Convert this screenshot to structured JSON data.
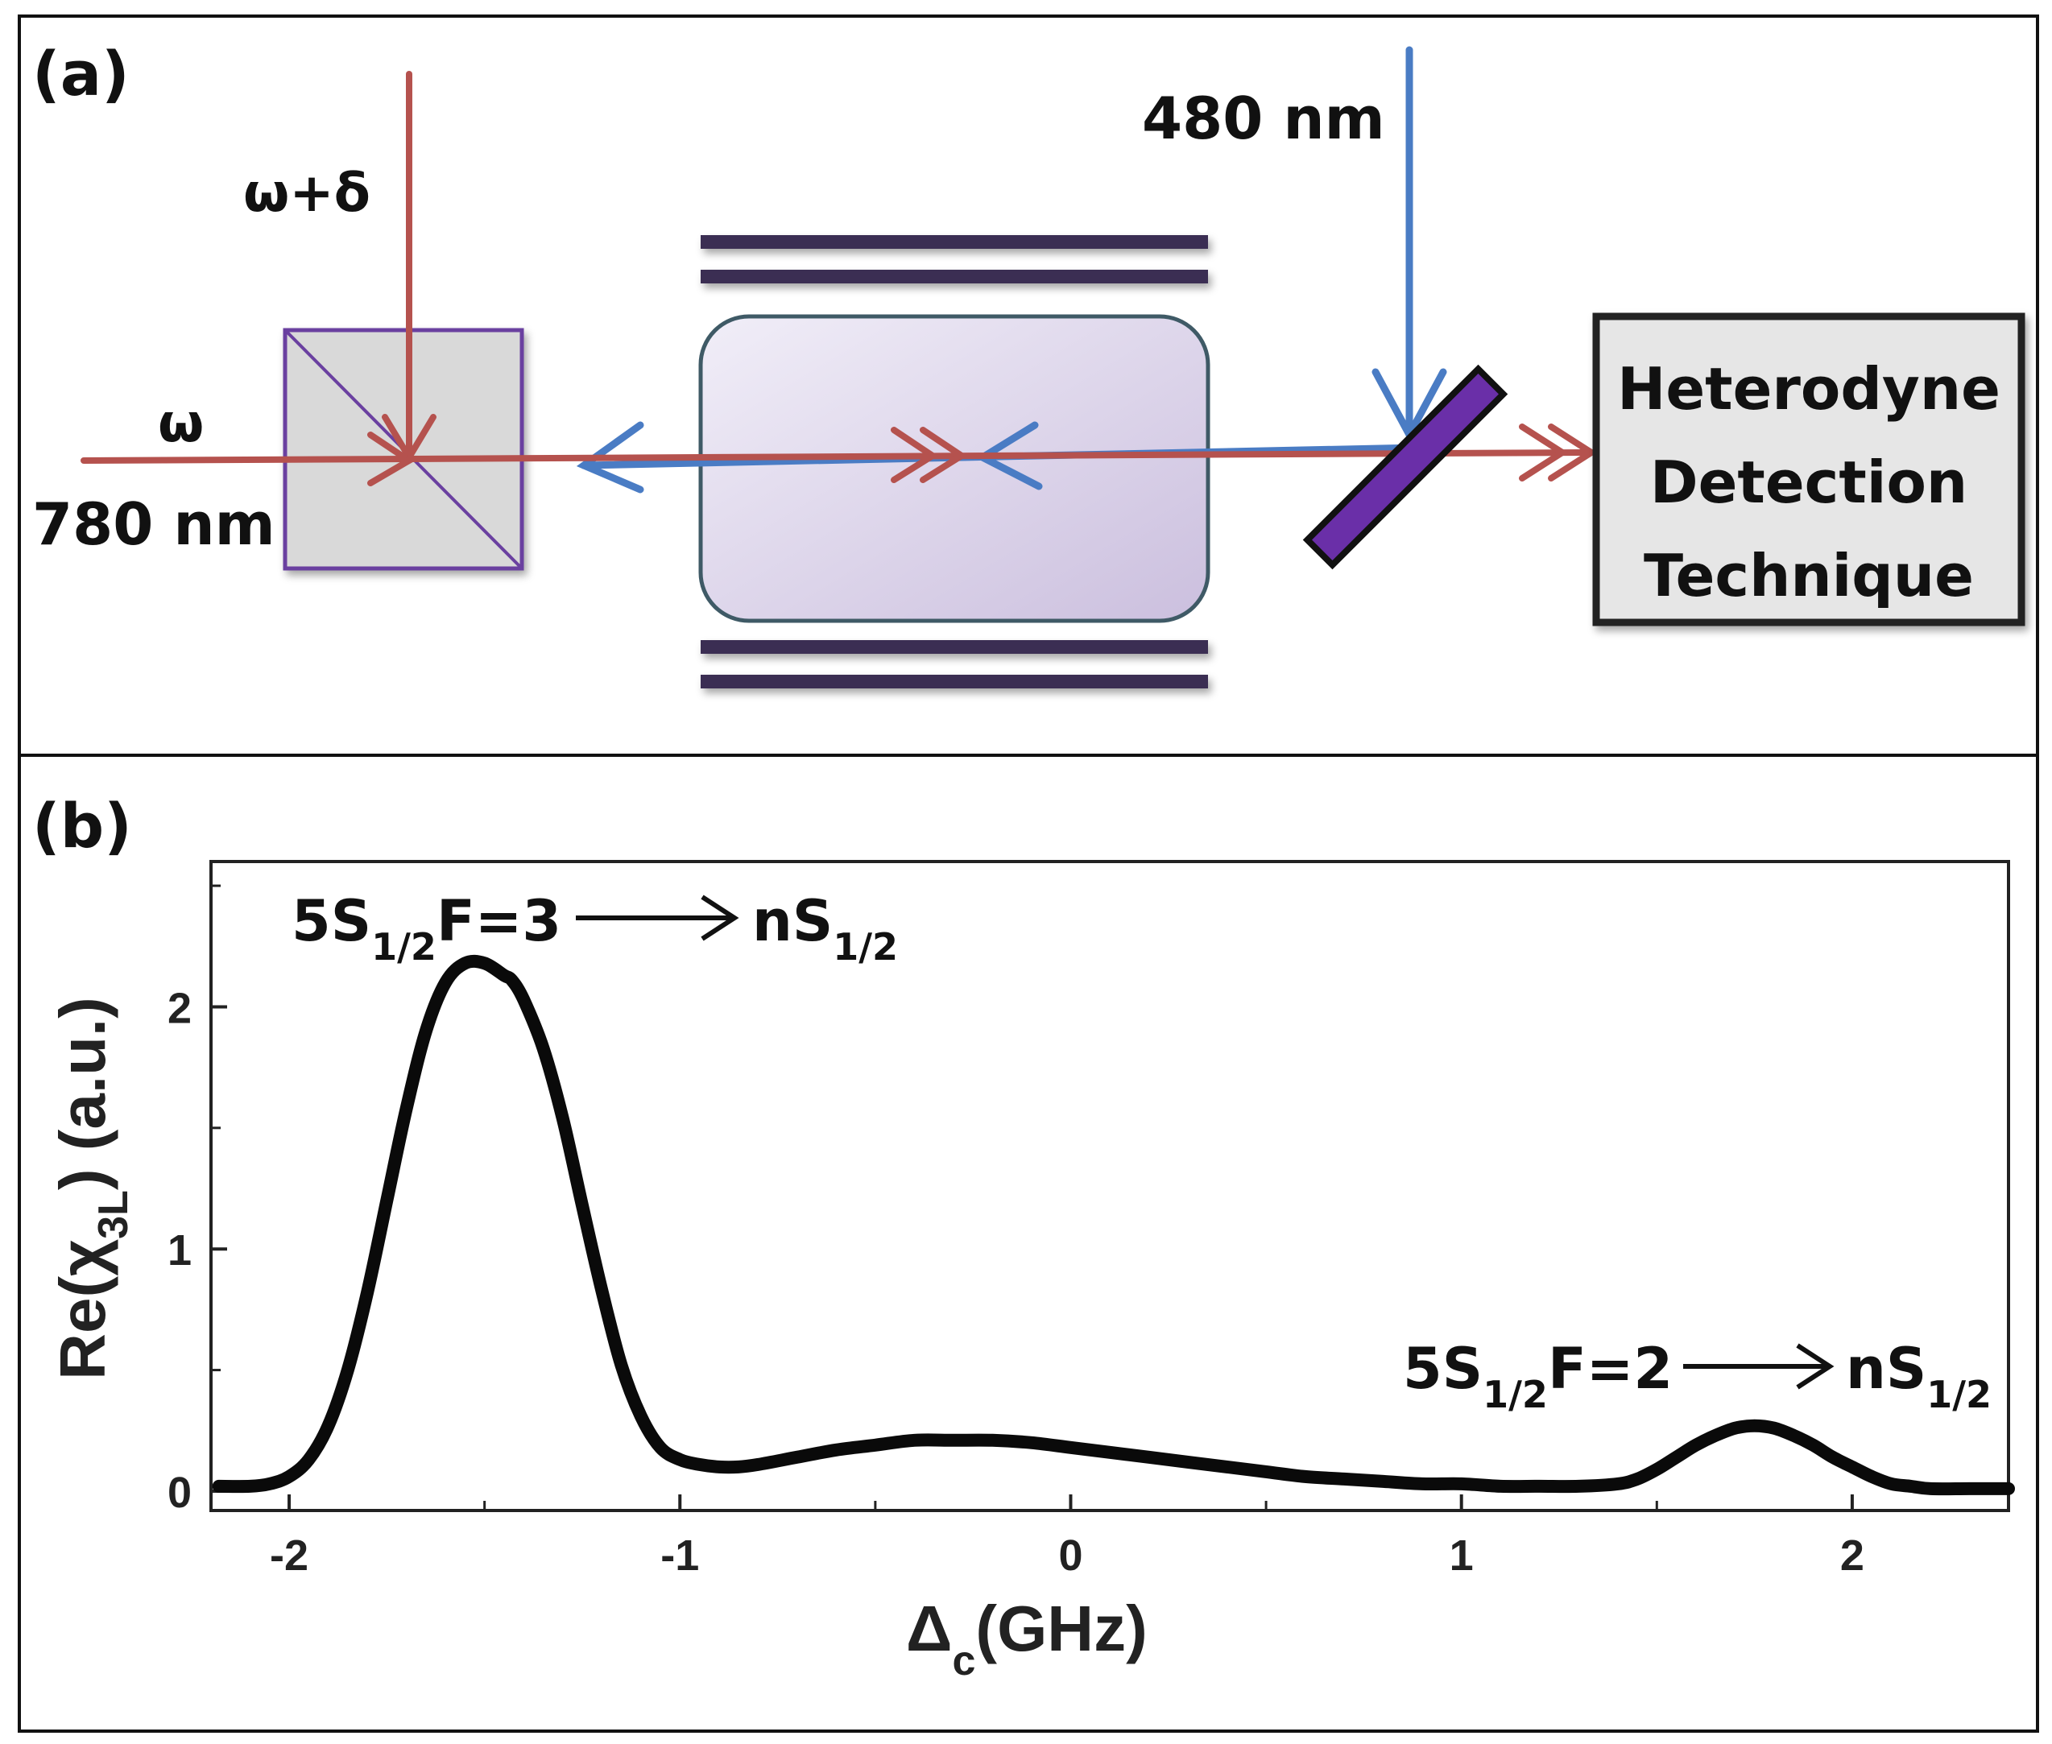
{
  "panel_a": {
    "label": "(a)",
    "label_omega_delta": "ω+δ",
    "label_omega": "ω",
    "label_780": "780 nm",
    "label_480": "480 nm",
    "detector_lines": [
      "Heterodyne",
      "Detection",
      "Technique"
    ]
  },
  "panel_b": {
    "label": "(b)",
    "annotation_left": {
      "prefix": "5S",
      "sub": "1/2",
      "mid": "F=3",
      "target": "nS",
      "target_sub": "1/2"
    },
    "annotation_right": {
      "prefix": "5S",
      "sub": "1/2",
      "mid": "F=2",
      "target": "nS",
      "target_sub": "1/2"
    }
  },
  "colors": {
    "probe_beam": "#b5524e",
    "coupling_beam": "#4a7cc4",
    "cell_border": "#3f5a66",
    "plates": "#3a2e52",
    "mirror": "#6a2fa8",
    "beamsplitter_border": "#6b3fa0"
  },
  "chart_data": {
    "type": "line",
    "title": "",
    "xlabel_main": "Δ",
    "xlabel_sub": "c",
    "xlabel_rest": "(GHz)",
    "ylabel_pre": "Re(χ",
    "ylabel_sub": "3L",
    "ylabel_post": ") (a.u.)",
    "xlim": [
      -2.2,
      2.4
    ],
    "ylim": [
      -0.08,
      2.6
    ],
    "xticks": [
      -2,
      -1,
      0,
      1,
      2
    ],
    "xtick_labels": [
      "-2",
      "-1",
      "0",
      "1",
      "2"
    ],
    "yticks": [
      0,
      1,
      2
    ],
    "ytick_labels": [
      "0",
      "1",
      "2"
    ],
    "grid": false,
    "series": [
      {
        "x": [
          -2.18,
          -2.1,
          -2.05,
          -2.0,
          -1.95,
          -1.9,
          -1.85,
          -1.8,
          -1.75,
          -1.7,
          -1.65,
          -1.6,
          -1.55,
          -1.5,
          -1.45,
          -1.43,
          -1.4,
          -1.35,
          -1.3,
          -1.25,
          -1.2,
          -1.15,
          -1.1,
          -1.05,
          -1.0,
          -0.95,
          -0.9,
          -0.85,
          -0.8,
          -0.7,
          -0.6,
          -0.5,
          -0.4,
          -0.3,
          -0.2,
          -0.1,
          0.0,
          0.1,
          0.2,
          0.3,
          0.4,
          0.5,
          0.6,
          0.7,
          0.8,
          0.9,
          1.0,
          1.1,
          1.2,
          1.3,
          1.4,
          1.45,
          1.5,
          1.55,
          1.6,
          1.65,
          1.7,
          1.75,
          1.8,
          1.85,
          1.9,
          1.95,
          2.0,
          2.05,
          2.1,
          2.15,
          2.2,
          2.3,
          2.4
        ],
        "y": [
          0.02,
          0.02,
          0.03,
          0.06,
          0.13,
          0.27,
          0.5,
          0.82,
          1.2,
          1.58,
          1.9,
          2.1,
          2.18,
          2.18,
          2.13,
          2.11,
          2.03,
          1.83,
          1.54,
          1.18,
          0.83,
          0.52,
          0.31,
          0.18,
          0.13,
          0.11,
          0.1,
          0.1,
          0.11,
          0.14,
          0.17,
          0.19,
          0.21,
          0.21,
          0.21,
          0.2,
          0.18,
          0.16,
          0.14,
          0.12,
          0.1,
          0.08,
          0.06,
          0.05,
          0.04,
          0.03,
          0.03,
          0.02,
          0.02,
          0.02,
          0.03,
          0.05,
          0.09,
          0.14,
          0.19,
          0.23,
          0.26,
          0.27,
          0.26,
          0.23,
          0.19,
          0.14,
          0.1,
          0.06,
          0.03,
          0.02,
          0.01,
          0.01,
          0.01
        ]
      }
    ]
  }
}
